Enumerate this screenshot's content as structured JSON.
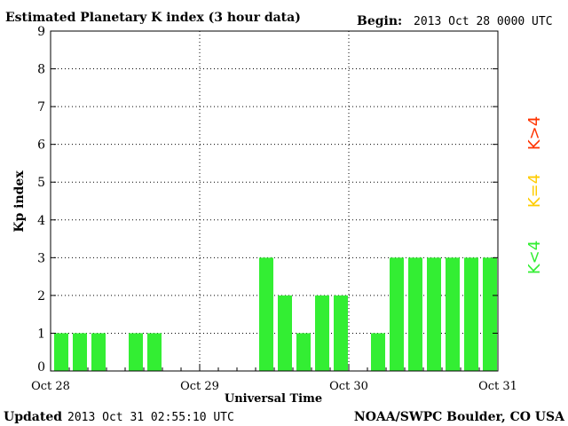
{
  "header": {
    "title": "Estimated Planetary K index (3 hour data)",
    "begin_label": "Begin:",
    "begin_value": "2013 Oct 28 0000 UTC"
  },
  "footer": {
    "updated_label": "Updated",
    "updated_value": "2013 Oct 31 02:55:10 UTC",
    "source": "NOAA/SWPC Boulder, CO USA"
  },
  "legend": {
    "high": "K>4",
    "mid": "K=4",
    "low": "K<4",
    "high_color": "#ff3300",
    "mid_color": "#ffcc00",
    "low_color": "#33ee33"
  },
  "chart_data": {
    "type": "bar",
    "title": "Estimated Planetary K index (3 hour data)",
    "xlabel": "Universal Time",
    "ylabel": "Kp index",
    "ylim": [
      0,
      9
    ],
    "yticks": [
      0,
      1,
      2,
      3,
      4,
      5,
      6,
      7,
      8,
      9
    ],
    "day_labels": [
      "Oct 28",
      "Oct 29",
      "Oct 30",
      "Oct 31"
    ],
    "interval_hours": 3,
    "grid": true,
    "bar_color": "#33ee33",
    "values": [
      1,
      1,
      1,
      0,
      1,
      1,
      0,
      0,
      0,
      0,
      0,
      3,
      2,
      1,
      2,
      2,
      0,
      1,
      3,
      3,
      3,
      3,
      3,
      3
    ]
  }
}
